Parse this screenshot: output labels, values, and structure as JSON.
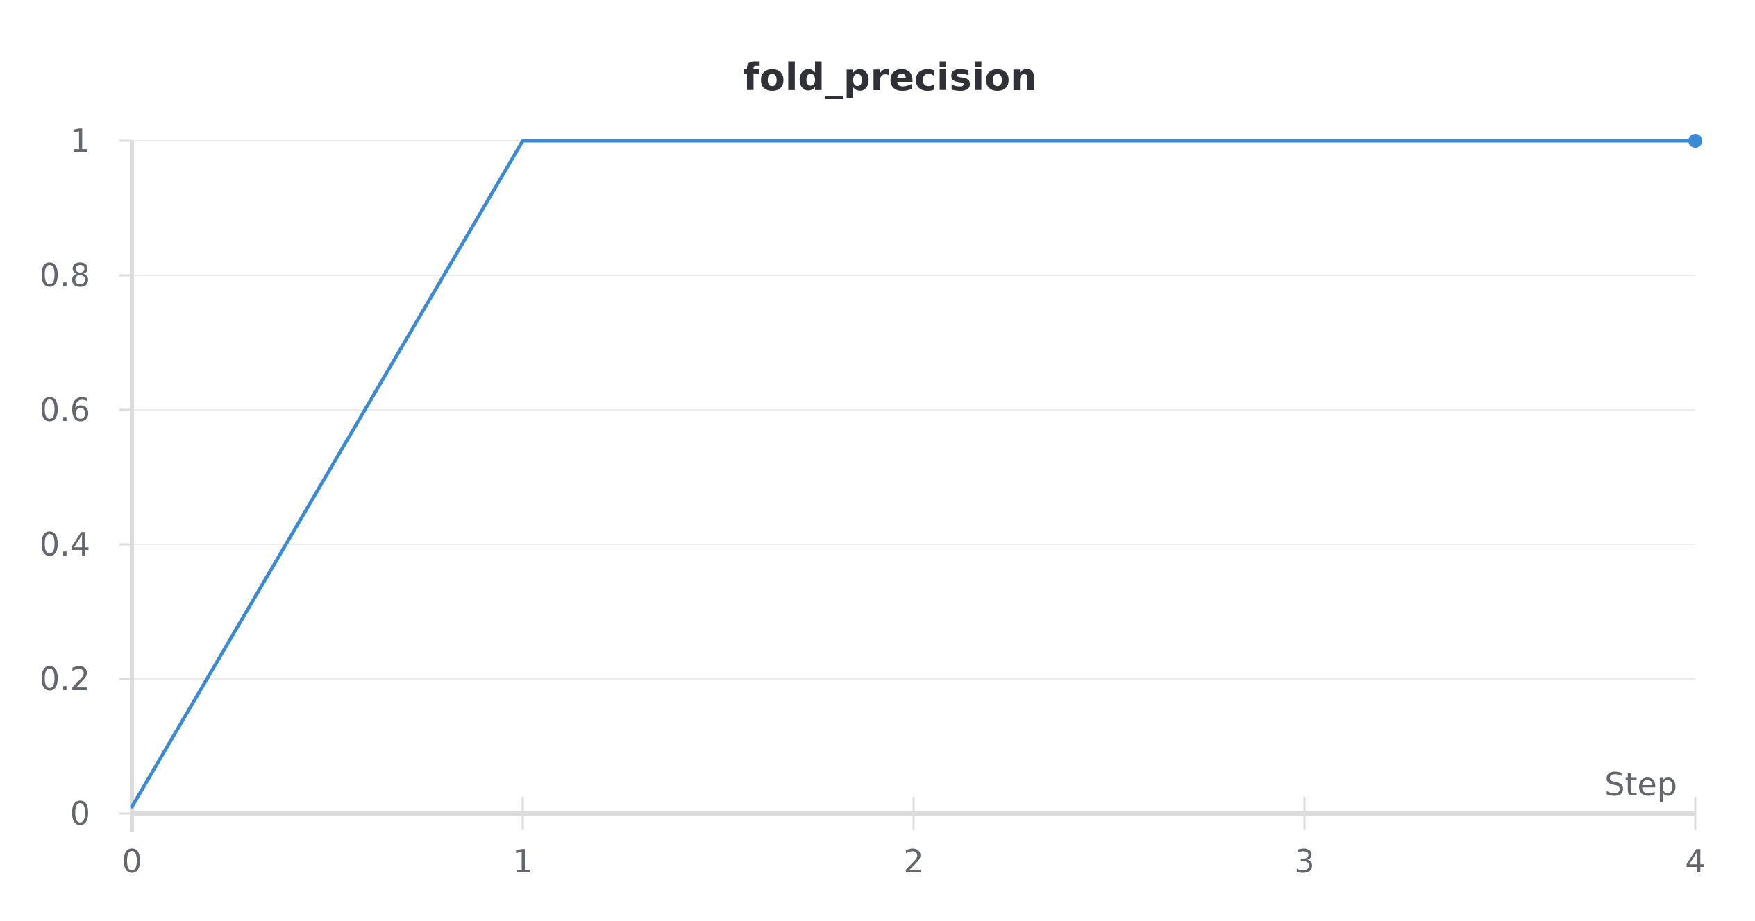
{
  "chart_data": {
    "type": "line",
    "title": "fold_precision",
    "xlabel": "Step",
    "ylabel": "",
    "x": [
      0,
      1,
      2,
      3,
      4
    ],
    "series": [
      {
        "values": [
          0.01,
          1,
          1,
          1,
          1
        ],
        "color": "#3a8ad6"
      }
    ],
    "xlim": [
      0,
      4
    ],
    "ylim": [
      0,
      1
    ],
    "xticks": [
      0,
      1,
      2,
      3,
      4
    ],
    "xtick_labels": [
      "0",
      "1",
      "2",
      "3",
      "4"
    ],
    "yticks": [
      0,
      0.2,
      0.4,
      0.6,
      0.8,
      1
    ],
    "ytick_labels": [
      "0",
      "0.2",
      "0.4",
      "0.6",
      "0.8",
      "1"
    ],
    "grid": true,
    "legend": "none",
    "end_marker": true
  }
}
